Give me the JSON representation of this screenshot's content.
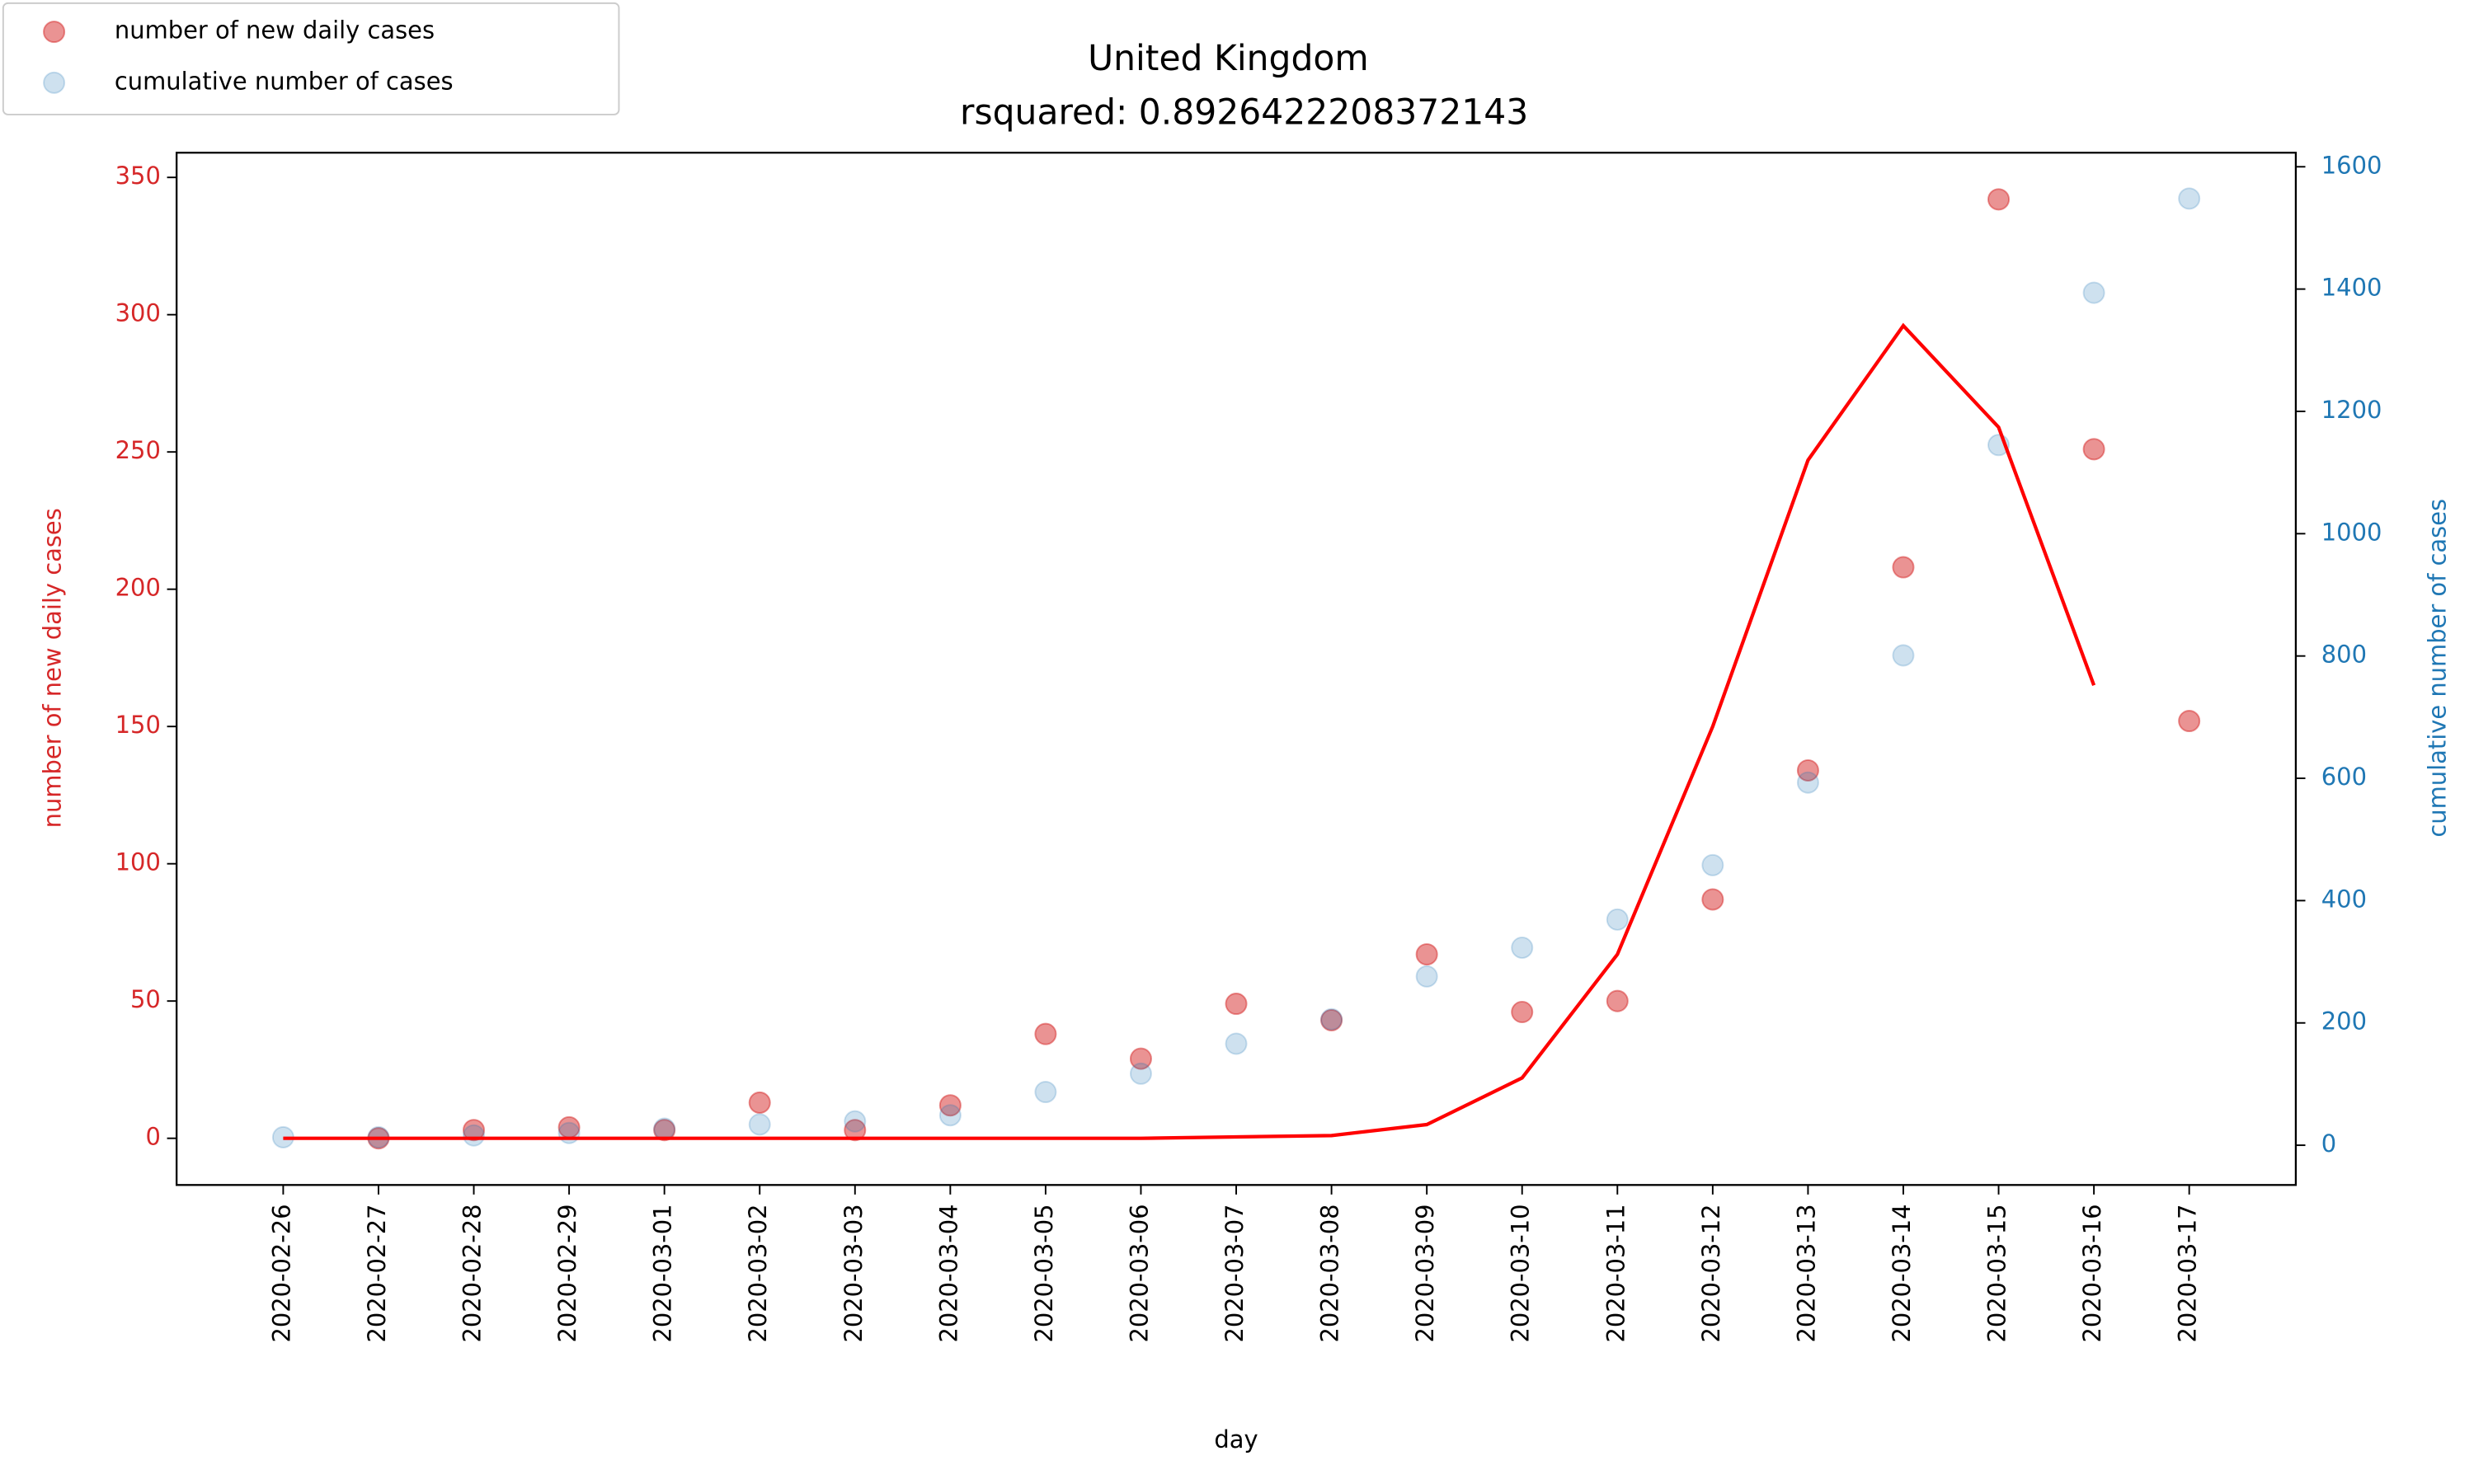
{
  "chart_data": {
    "type": "scatter",
    "title": "United Kingdom",
    "subtitle": "rsquared: 0.8926422208372143",
    "xlabel": "day",
    "ylabel": "number of new daily cases",
    "y2label": "cumulative number of cases",
    "categories": [
      "2020-02-26",
      "2020-02-27",
      "2020-02-28",
      "2020-02-29",
      "2020-03-01",
      "2020-03-02",
      "2020-03-03",
      "2020-03-04",
      "2020-03-05",
      "2020-03-06",
      "2020-03-07",
      "2020-03-08",
      "2020-03-09",
      "2020-03-10",
      "2020-03-11",
      "2020-03-12",
      "2020-03-13",
      "2020-03-14",
      "2020-03-15",
      "2020-03-16",
      "2020-03-17"
    ],
    "ylim": [
      -17,
      359
    ],
    "yticks": [
      0,
      50,
      100,
      150,
      200,
      250,
      300,
      350
    ],
    "y2lim": [
      -65,
      1623
    ],
    "y2ticks": [
      0,
      200,
      400,
      600,
      800,
      1000,
      1200,
      1400,
      1600
    ],
    "ylabel_color": "#d62728",
    "y2label_color": "#1f77b4",
    "legend": "upper left",
    "series": [
      {
        "name": "number of new daily cases",
        "type": "scatter",
        "color": "#d62728",
        "opacity": 0.5,
        "values": [
          null,
          0,
          3,
          4,
          3,
          13,
          3,
          12,
          38,
          29,
          49,
          43,
          67,
          46,
          50,
          87,
          134,
          208,
          342,
          251,
          152
        ]
      },
      {
        "name": "cumulative number of cases",
        "type": "scatter",
        "axis": "y2",
        "color": "#1f77b4",
        "opacity": 0.22,
        "values": [
          13,
          13,
          16,
          20,
          27,
          34,
          39,
          49,
          87,
          117,
          166,
          206,
          276,
          323,
          369,
          458,
          593,
          801,
          1145,
          1394,
          1548
        ]
      },
      {
        "type": "line",
        "color": "#ff0000",
        "values": [
          0,
          0,
          0,
          0,
          0,
          0,
          0,
          0,
          0,
          0,
          0.5,
          1,
          5,
          22,
          67,
          150,
          247,
          296,
          259,
          165,
          null
        ]
      }
    ]
  }
}
